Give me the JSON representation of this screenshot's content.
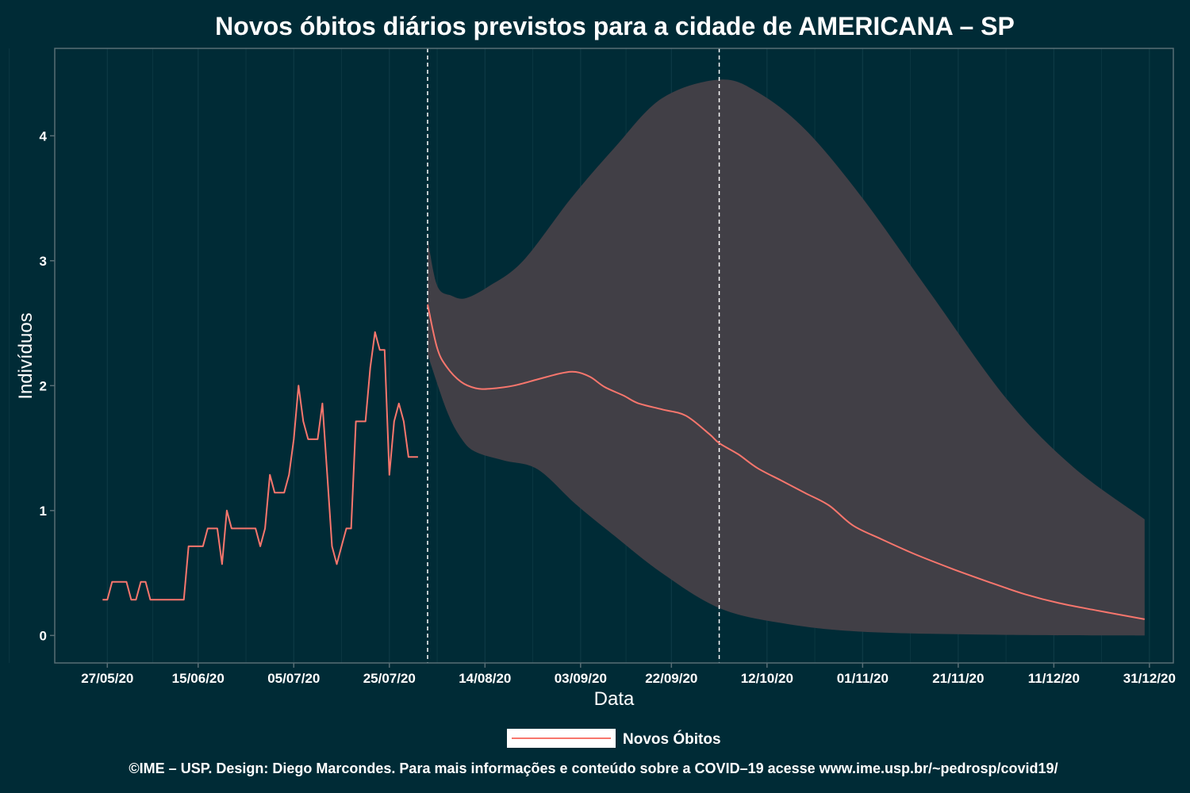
{
  "chart_data": {
    "type": "line",
    "title": "Novos óbitos diários previstos para a cidade de AMERICANA – SP",
    "xlabel": "Data",
    "ylabel": "Indivíduos",
    "x_tick_labels": [
      "27/05/20",
      "15/06/20",
      "05/07/20",
      "25/07/20",
      "14/08/20",
      "03/09/20",
      "22/09/20",
      "12/10/20",
      "01/11/20",
      "21/11/20",
      "11/12/20",
      "31/12/20"
    ],
    "y_tick_labels": [
      "0",
      "1",
      "2",
      "3",
      "4"
    ],
    "xlim": [
      "2020-05-16",
      "2021-01-05"
    ],
    "ylim": [
      -0.22,
      4.7
    ],
    "grid": "vertical",
    "legend_position": "bottom",
    "vertical_lines": [
      "2020-08-02",
      "2020-10-02"
    ],
    "colors": {
      "background": "#002b36",
      "line": "#f8766d",
      "band": "#413f46",
      "frame": "#586e75",
      "grid": "#0e3a45",
      "vline": "#ffffff"
    },
    "series": [
      {
        "name": "Novos Óbitos",
        "observed": [
          [
            "2020-05-26",
            0.286
          ],
          [
            "2020-05-27",
            0.286
          ],
          [
            "2020-05-28",
            0.429
          ],
          [
            "2020-05-29",
            0.429
          ],
          [
            "2020-05-30",
            0.429
          ],
          [
            "2020-05-31",
            0.429
          ],
          [
            "2020-06-01",
            0.286
          ],
          [
            "2020-06-02",
            0.286
          ],
          [
            "2020-06-03",
            0.429
          ],
          [
            "2020-06-04",
            0.429
          ],
          [
            "2020-06-05",
            0.286
          ],
          [
            "2020-06-06",
            0.286
          ],
          [
            "2020-06-07",
            0.286
          ],
          [
            "2020-06-08",
            0.286
          ],
          [
            "2020-06-09",
            0.286
          ],
          [
            "2020-06-10",
            0.286
          ],
          [
            "2020-06-11",
            0.286
          ],
          [
            "2020-06-12",
            0.286
          ],
          [
            "2020-06-13",
            0.714
          ],
          [
            "2020-06-14",
            0.714
          ],
          [
            "2020-06-15",
            0.714
          ],
          [
            "2020-06-16",
            0.714
          ],
          [
            "2020-06-17",
            0.857
          ],
          [
            "2020-06-18",
            0.857
          ],
          [
            "2020-06-19",
            0.857
          ],
          [
            "2020-06-20",
            0.571
          ],
          [
            "2020-06-21",
            1.0
          ],
          [
            "2020-06-22",
            0.857
          ],
          [
            "2020-06-23",
            0.857
          ],
          [
            "2020-06-24",
            0.857
          ],
          [
            "2020-06-25",
            0.857
          ],
          [
            "2020-06-26",
            0.857
          ],
          [
            "2020-06-27",
            0.857
          ],
          [
            "2020-06-28",
            0.714
          ],
          [
            "2020-06-29",
            0.857
          ],
          [
            "2020-06-30",
            1.286
          ],
          [
            "2020-07-01",
            1.143
          ],
          [
            "2020-07-02",
            1.143
          ],
          [
            "2020-07-03",
            1.143
          ],
          [
            "2020-07-04",
            1.286
          ],
          [
            "2020-07-05",
            1.571
          ],
          [
            "2020-07-06",
            2.0
          ],
          [
            "2020-07-07",
            1.714
          ],
          [
            "2020-07-08",
            1.571
          ],
          [
            "2020-07-09",
            1.571
          ],
          [
            "2020-07-10",
            1.571
          ],
          [
            "2020-07-11",
            1.857
          ],
          [
            "2020-07-12",
            1.286
          ],
          [
            "2020-07-13",
            0.714
          ],
          [
            "2020-07-14",
            0.571
          ],
          [
            "2020-07-15",
            0.714
          ],
          [
            "2020-07-16",
            0.857
          ],
          [
            "2020-07-17",
            0.857
          ],
          [
            "2020-07-18",
            1.714
          ],
          [
            "2020-07-19",
            1.714
          ],
          [
            "2020-07-20",
            1.714
          ],
          [
            "2020-07-21",
            2.143
          ],
          [
            "2020-07-22",
            2.429
          ],
          [
            "2020-07-23",
            2.286
          ],
          [
            "2020-07-24",
            2.286
          ],
          [
            "2020-07-25",
            1.286
          ],
          [
            "2020-07-26",
            1.714
          ],
          [
            "2020-07-27",
            1.857
          ],
          [
            "2020-07-28",
            1.714
          ],
          [
            "2020-07-29",
            1.429
          ],
          [
            "2020-07-30",
            1.429
          ],
          [
            "2020-07-31",
            1.429
          ]
        ],
        "forecast": [
          [
            "2020-08-02",
            2.65
          ],
          [
            "2020-08-04",
            2.3
          ],
          [
            "2020-08-06",
            2.15
          ],
          [
            "2020-08-09",
            2.03
          ],
          [
            "2020-08-12",
            1.98
          ],
          [
            "2020-08-15",
            1.975
          ],
          [
            "2020-08-20",
            2.0
          ],
          [
            "2020-08-25",
            2.05
          ],
          [
            "2020-08-30",
            2.1
          ],
          [
            "2020-09-02",
            2.11
          ],
          [
            "2020-09-05",
            2.07
          ],
          [
            "2020-09-08",
            1.99
          ],
          [
            "2020-09-12",
            1.92
          ],
          [
            "2020-09-15",
            1.86
          ],
          [
            "2020-09-20",
            1.81
          ],
          [
            "2020-09-25",
            1.76
          ],
          [
            "2020-09-30",
            1.61
          ],
          [
            "2020-10-02",
            1.54
          ],
          [
            "2020-10-06",
            1.45
          ],
          [
            "2020-10-10",
            1.34
          ],
          [
            "2020-10-15",
            1.24
          ],
          [
            "2020-10-20",
            1.14
          ],
          [
            "2020-10-25",
            1.04
          ],
          [
            "2020-10-30",
            0.88
          ],
          [
            "2020-11-05",
            0.77
          ],
          [
            "2020-11-12",
            0.65
          ],
          [
            "2020-11-20",
            0.53
          ],
          [
            "2020-11-28",
            0.42
          ],
          [
            "2020-12-05",
            0.33
          ],
          [
            "2020-12-12",
            0.26
          ],
          [
            "2020-12-20",
            0.2
          ],
          [
            "2020-12-30",
            0.13
          ]
        ]
      },
      {
        "name": "",
        "upper": [
          [
            "2020-08-02",
            3.18
          ],
          [
            "2020-08-04",
            2.8
          ],
          [
            "2020-08-07",
            2.72
          ],
          [
            "2020-08-10",
            2.7
          ],
          [
            "2020-08-15",
            2.8
          ],
          [
            "2020-08-22",
            3.0
          ],
          [
            "2020-09-01",
            3.5
          ],
          [
            "2020-09-10",
            3.9
          ],
          [
            "2020-09-20",
            4.3
          ],
          [
            "2020-10-02",
            4.45
          ],
          [
            "2020-10-10",
            4.35
          ],
          [
            "2020-10-20",
            4.05
          ],
          [
            "2020-11-01",
            3.5
          ],
          [
            "2020-11-15",
            2.75
          ],
          [
            "2020-12-01",
            1.9
          ],
          [
            "2020-12-15",
            1.35
          ],
          [
            "2020-12-30",
            0.93
          ]
        ],
        "lower": [
          [
            "2020-08-02",
            2.25
          ],
          [
            "2020-08-06",
            1.8
          ],
          [
            "2020-08-09",
            1.58
          ],
          [
            "2020-08-12",
            1.47
          ],
          [
            "2020-08-18",
            1.4
          ],
          [
            "2020-08-25",
            1.33
          ],
          [
            "2020-09-02",
            1.05
          ],
          [
            "2020-09-10",
            0.8
          ],
          [
            "2020-09-20",
            0.5
          ],
          [
            "2020-10-02",
            0.22
          ],
          [
            "2020-10-15",
            0.1
          ],
          [
            "2020-11-01",
            0.03
          ],
          [
            "2020-12-01",
            0.005
          ],
          [
            "2020-12-30",
            0.0
          ]
        ]
      }
    ],
    "footer": "©IME – USP. Design: Diego Marcondes. Para mais informações e conteúdo sobre a COVID–19 acesse www.ime.usp.br/~pedrosp/covid19/"
  }
}
